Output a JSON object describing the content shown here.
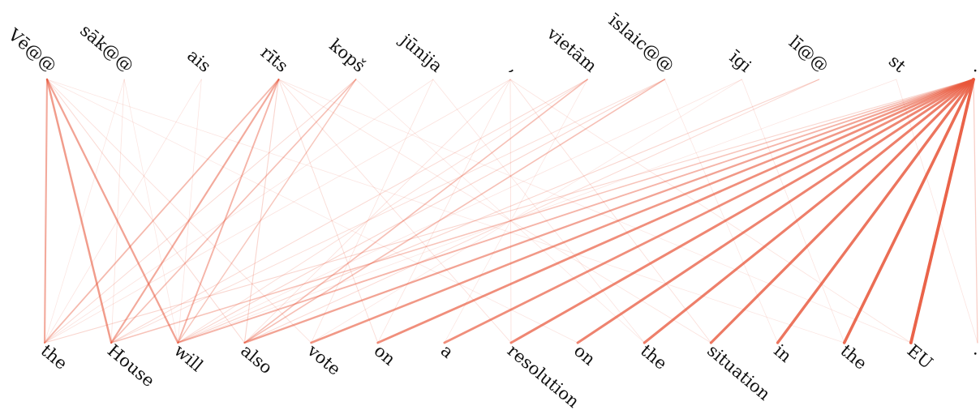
{
  "source_tokens": [
    "Vē@@",
    "sāk@@",
    "ais",
    "rīts",
    "kopš",
    "jūnija",
    ",",
    "vietām",
    "īslaic@@",
    "īgi",
    "lī@@",
    "st",
    "."
  ],
  "target_tokens": [
    "the",
    "House",
    "will",
    "also",
    "vote",
    "on",
    "a",
    "resolution",
    "on",
    "the",
    "situation",
    "in",
    "the",
    "EU",
    "."
  ],
  "colors": {
    "edge": "#e8563a",
    "text": "#111111"
  },
  "alignment": [
    {
      "s": 12,
      "t": 0,
      "w": 0.15
    },
    {
      "s": 12,
      "t": 1,
      "w": 0.28
    },
    {
      "s": 12,
      "t": 2,
      "w": 0.38
    },
    {
      "s": 12,
      "t": 3,
      "w": 0.5
    },
    {
      "s": 12,
      "t": 4,
      "w": 0.58
    },
    {
      "s": 12,
      "t": 5,
      "w": 0.65
    },
    {
      "s": 12,
      "t": 6,
      "w": 0.65
    },
    {
      "s": 12,
      "t": 7,
      "w": 0.7
    },
    {
      "s": 12,
      "t": 8,
      "w": 0.72
    },
    {
      "s": 12,
      "t": 9,
      "w": 0.75
    },
    {
      "s": 12,
      "t": 10,
      "w": 0.78
    },
    {
      "s": 12,
      "t": 11,
      "w": 0.82
    },
    {
      "s": 12,
      "t": 12,
      "w": 0.88
    },
    {
      "s": 12,
      "t": 13,
      "w": 0.95
    },
    {
      "s": 12,
      "t": 14,
      "w": 0.2
    },
    {
      "s": 0,
      "t": 0,
      "w": 0.45
    },
    {
      "s": 0,
      "t": 1,
      "w": 0.55
    },
    {
      "s": 0,
      "t": 2,
      "w": 0.5
    },
    {
      "s": 0,
      "t": 3,
      "w": 0.12
    },
    {
      "s": 0,
      "t": 4,
      "w": 0.08
    },
    {
      "s": 3,
      "t": 0,
      "w": 0.35
    },
    {
      "s": 3,
      "t": 1,
      "w": 0.45
    },
    {
      "s": 3,
      "t": 2,
      "w": 0.38
    },
    {
      "s": 3,
      "t": 3,
      "w": 0.15
    },
    {
      "s": 3,
      "t": 5,
      "w": 0.1
    },
    {
      "s": 3,
      "t": 7,
      "w": 0.08
    },
    {
      "s": 3,
      "t": 10,
      "w": 0.06
    },
    {
      "s": 4,
      "t": 1,
      "w": 0.3
    },
    {
      "s": 4,
      "t": 2,
      "w": 0.25
    },
    {
      "s": 4,
      "t": 0,
      "w": 0.12
    },
    {
      "s": 7,
      "t": 3,
      "w": 0.3
    },
    {
      "s": 7,
      "t": 1,
      "w": 0.12
    },
    {
      "s": 7,
      "t": 2,
      "w": 0.1
    },
    {
      "s": 8,
      "t": 3,
      "w": 0.3
    },
    {
      "s": 8,
      "t": 2,
      "w": 0.15
    },
    {
      "s": 8,
      "t": 1,
      "w": 0.1
    },
    {
      "s": 10,
      "t": 2,
      "w": 0.15
    },
    {
      "s": 10,
      "t": 3,
      "w": 0.12
    },
    {
      "s": 6,
      "t": 0,
      "w": 0.06
    },
    {
      "s": 6,
      "t": 3,
      "w": 0.08
    },
    {
      "s": 6,
      "t": 5,
      "w": 0.06
    },
    {
      "s": 6,
      "t": 7,
      "w": 0.08
    },
    {
      "s": 6,
      "t": 10,
      "w": 0.08
    },
    {
      "s": 6,
      "t": 13,
      "w": 0.06
    },
    {
      "s": 5,
      "t": 4,
      "w": 0.06
    },
    {
      "s": 5,
      "t": 9,
      "w": 0.05
    },
    {
      "s": 5,
      "t": 0,
      "w": 0.05
    },
    {
      "s": 1,
      "t": 1,
      "w": 0.06
    },
    {
      "s": 1,
      "t": 2,
      "w": 0.04
    },
    {
      "s": 1,
      "t": 0,
      "w": 0.04
    },
    {
      "s": 2,
      "t": 0,
      "w": 0.05
    },
    {
      "s": 2,
      "t": 2,
      "w": 0.05
    },
    {
      "s": 9,
      "t": 2,
      "w": 0.05
    },
    {
      "s": 9,
      "t": 4,
      "w": 0.04
    },
    {
      "s": 9,
      "t": 12,
      "w": 0.05
    },
    {
      "s": 11,
      "t": 2,
      "w": 0.04
    },
    {
      "s": 11,
      "t": 14,
      "w": 0.05
    },
    {
      "s": 0,
      "t": 8,
      "w": 0.04
    },
    {
      "s": 0,
      "t": 12,
      "w": 0.04
    },
    {
      "s": 3,
      "t": 13,
      "w": 0.04
    },
    {
      "s": 4,
      "t": 9,
      "w": 0.04
    },
    {
      "s": 7,
      "t": 6,
      "w": 0.04
    },
    {
      "s": 8,
      "t": 11,
      "w": 0.04
    }
  ]
}
